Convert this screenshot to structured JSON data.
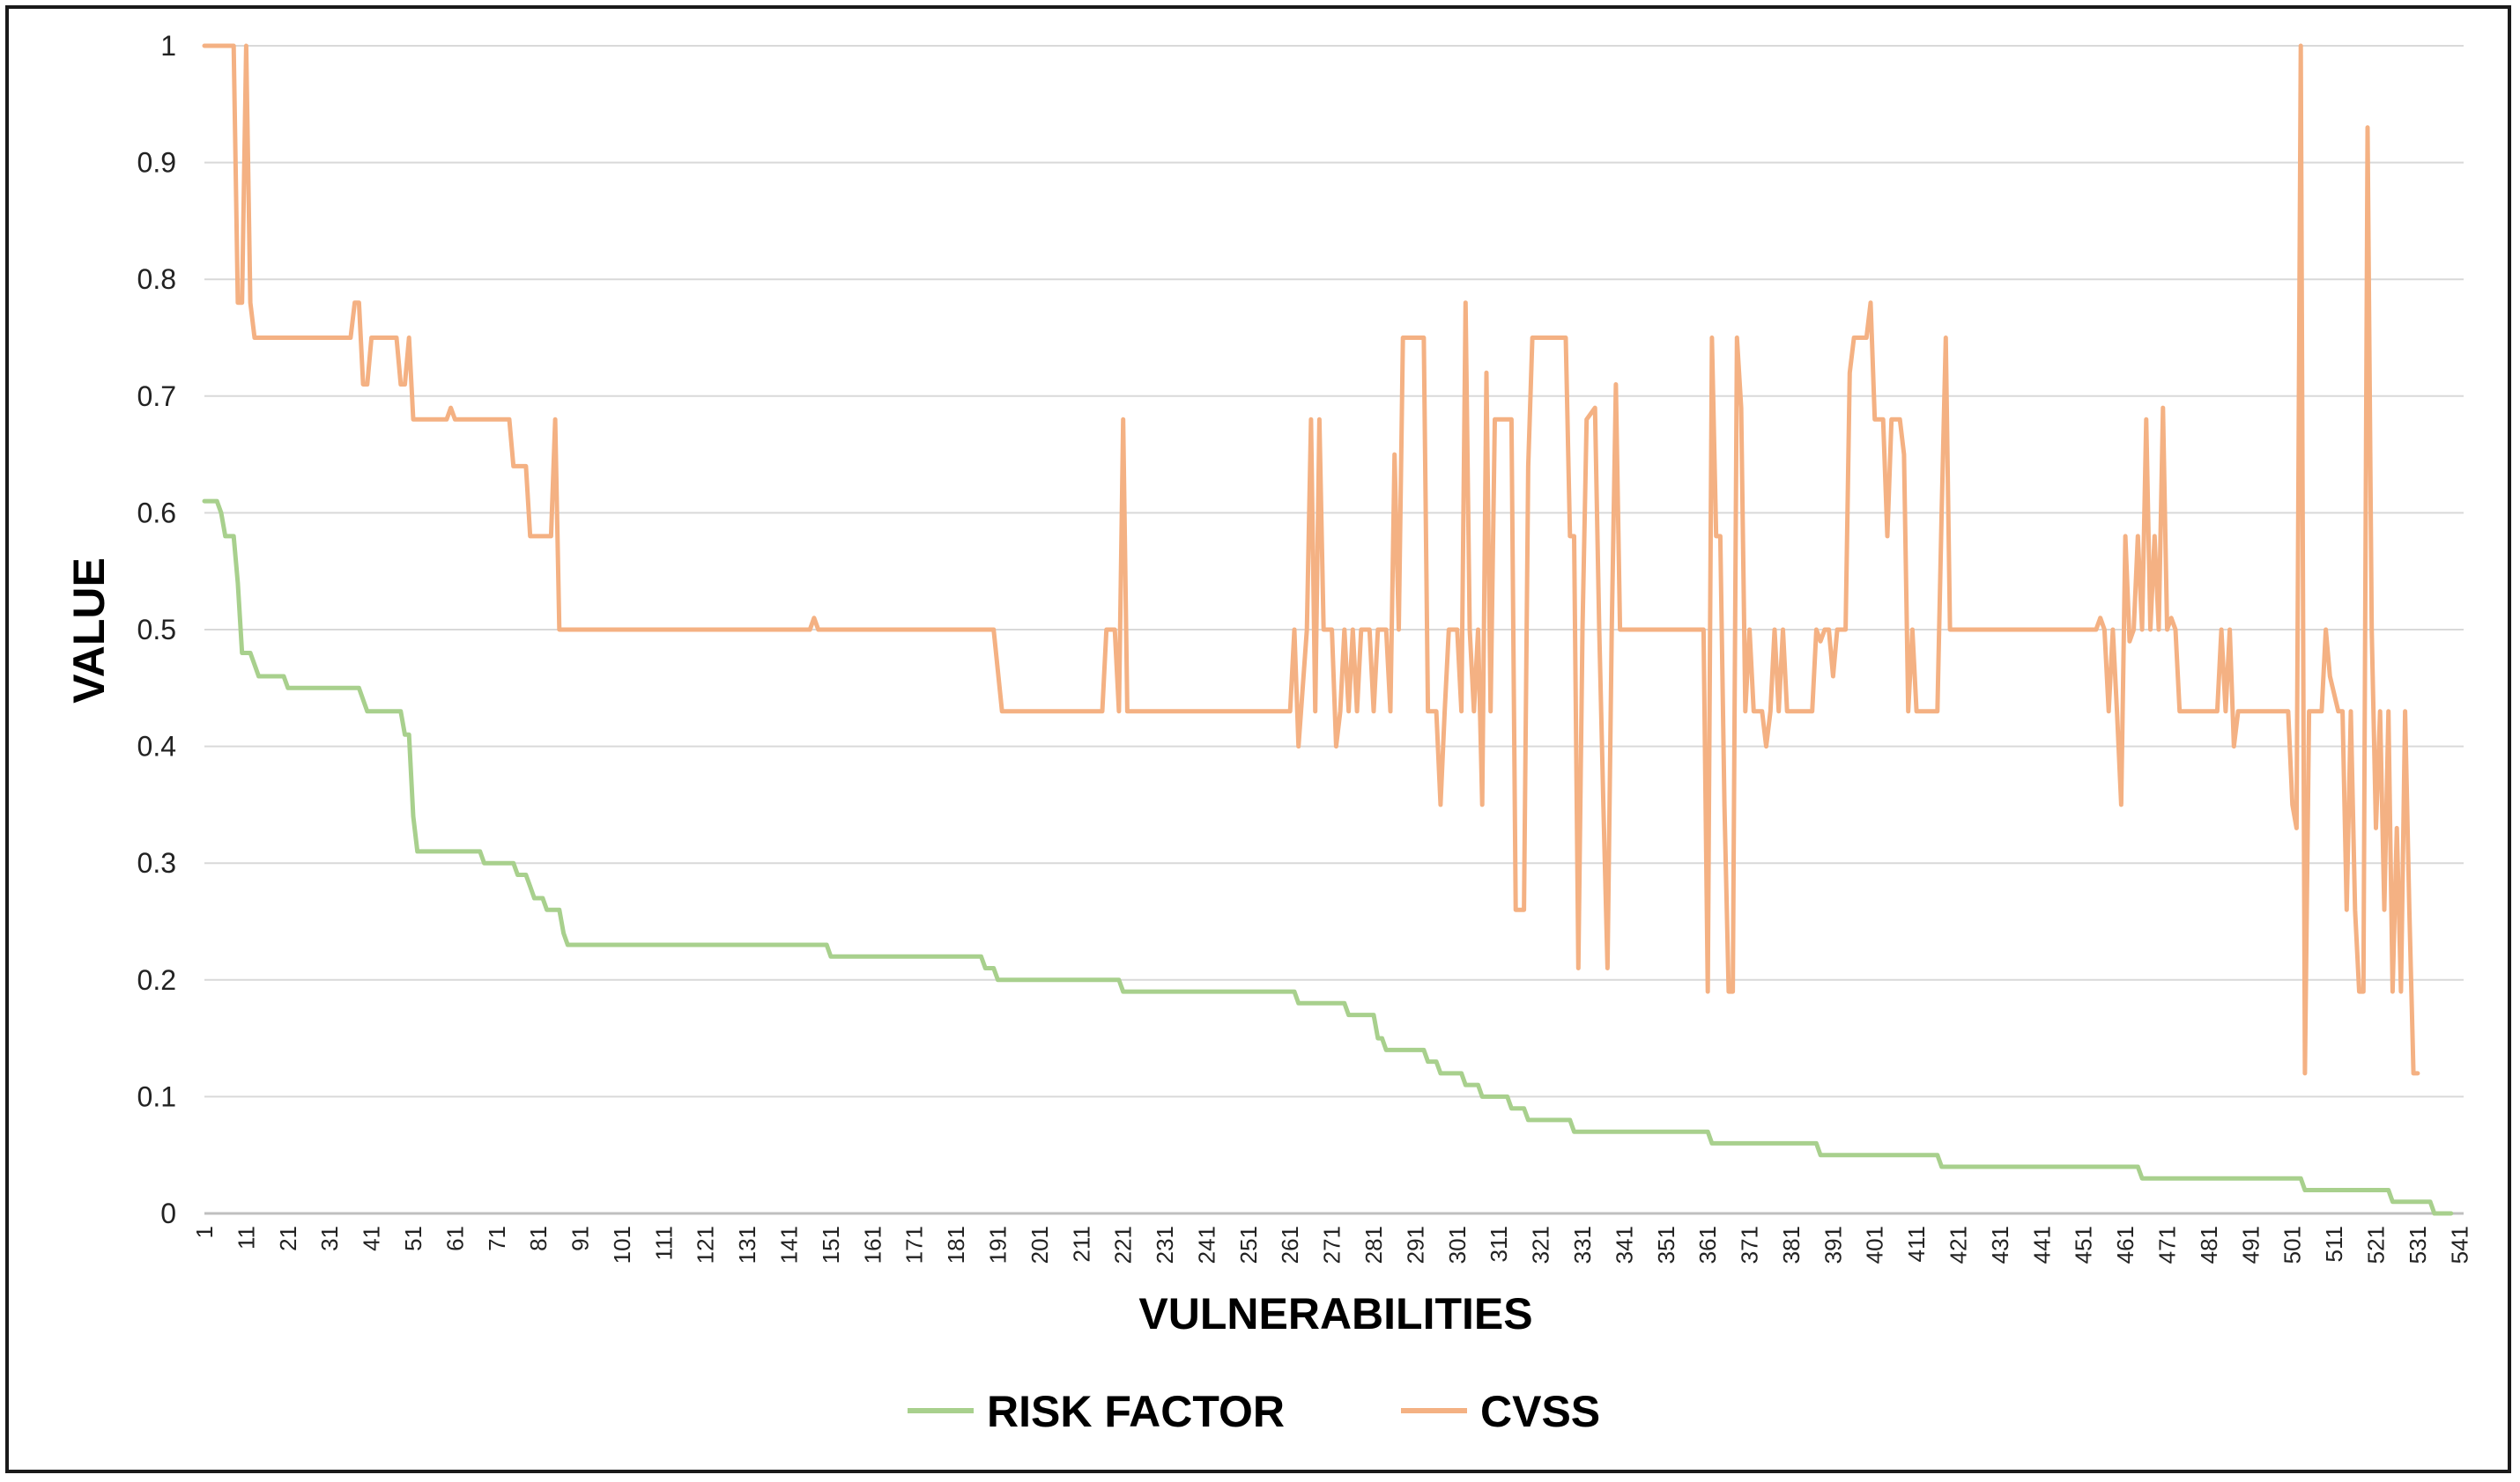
{
  "chart_data": {
    "type": "line",
    "title": "",
    "xlabel": "VULNERABILITIES",
    "ylabel": "VALUE",
    "xlim": [
      1,
      542
    ],
    "ylim": [
      0,
      1
    ],
    "y_ticks": [
      "0",
      "0.1",
      "0.2",
      "0.3",
      "0.4",
      "0.5",
      "0.6",
      "0.7",
      "0.8",
      "0.9",
      "1"
    ],
    "x_ticks": [
      "1",
      "11",
      "21",
      "31",
      "41",
      "51",
      "61",
      "71",
      "81",
      "91",
      "101",
      "111",
      "121",
      "131",
      "141",
      "151",
      "161",
      "171",
      "181",
      "191",
      "201",
      "211",
      "221",
      "231",
      "241",
      "251",
      "261",
      "271",
      "281",
      "291",
      "301",
      "311",
      "321",
      "331",
      "341",
      "351",
      "361",
      "371",
      "381",
      "391",
      "401",
      "411",
      "421",
      "431",
      "441",
      "451",
      "461",
      "471",
      "481",
      "491",
      "501",
      "511",
      "521",
      "531",
      "541"
    ],
    "grid": true,
    "legend_position": "bottom",
    "series": [
      {
        "name": "RISK FACTOR",
        "color": "#a8d08d",
        "points": [
          [
            1,
            0.61
          ],
          [
            4,
            0.61
          ],
          [
            5,
            0.6
          ],
          [
            6,
            0.58
          ],
          [
            8,
            0.58
          ],
          [
            9,
            0.54
          ],
          [
            10,
            0.48
          ],
          [
            12,
            0.48
          ],
          [
            13,
            0.47
          ],
          [
            14,
            0.46
          ],
          [
            20,
            0.46
          ],
          [
            21,
            0.45
          ],
          [
            38,
            0.45
          ],
          [
            40,
            0.43
          ],
          [
            48,
            0.43
          ],
          [
            49,
            0.41
          ],
          [
            50,
            0.41
          ],
          [
            51,
            0.34
          ],
          [
            52,
            0.31
          ],
          [
            67,
            0.31
          ],
          [
            68,
            0.3
          ],
          [
            75,
            0.3
          ],
          [
            76,
            0.29
          ],
          [
            78,
            0.29
          ],
          [
            79,
            0.28
          ],
          [
            80,
            0.27
          ],
          [
            82,
            0.27
          ],
          [
            83,
            0.26
          ],
          [
            86,
            0.26
          ],
          [
            87,
            0.24
          ],
          [
            88,
            0.23
          ],
          [
            150,
            0.23
          ],
          [
            151,
            0.22
          ],
          [
            187,
            0.22
          ],
          [
            188,
            0.21
          ],
          [
            190,
            0.21
          ],
          [
            191,
            0.2
          ],
          [
            220,
            0.2
          ],
          [
            221,
            0.19
          ],
          [
            262,
            0.19
          ],
          [
            263,
            0.18
          ],
          [
            274,
            0.18
          ],
          [
            275,
            0.17
          ],
          [
            281,
            0.17
          ],
          [
            282,
            0.15
          ],
          [
            283,
            0.15
          ],
          [
            284,
            0.14
          ],
          [
            293,
            0.14
          ],
          [
            294,
            0.13
          ],
          [
            296,
            0.13
          ],
          [
            297,
            0.12
          ],
          [
            302,
            0.12
          ],
          [
            303,
            0.11
          ],
          [
            306,
            0.11
          ],
          [
            307,
            0.1
          ],
          [
            313,
            0.1
          ],
          [
            314,
            0.09
          ],
          [
            317,
            0.09
          ],
          [
            318,
            0.08
          ],
          [
            328,
            0.08
          ],
          [
            329,
            0.07
          ],
          [
            361,
            0.07
          ],
          [
            362,
            0.06
          ],
          [
            387,
            0.06
          ],
          [
            388,
            0.05
          ],
          [
            416,
            0.05
          ],
          [
            417,
            0.04
          ],
          [
            464,
            0.04
          ],
          [
            465,
            0.03
          ],
          [
            503,
            0.03
          ],
          [
            504,
            0.02
          ],
          [
            524,
            0.02
          ],
          [
            525,
            0.01
          ],
          [
            534,
            0.01
          ],
          [
            535,
            0.0
          ],
          [
            539,
            0.0
          ]
        ]
      },
      {
        "name": "CVSS",
        "color": "#f4b183",
        "points": [
          [
            1,
            1.0
          ],
          [
            8,
            1.0
          ],
          [
            9,
            0.78
          ],
          [
            10,
            0.78
          ],
          [
            11,
            1.0
          ],
          [
            12,
            0.78
          ],
          [
            13,
            0.75
          ],
          [
            36,
            0.75
          ],
          [
            37,
            0.78
          ],
          [
            38,
            0.78
          ],
          [
            39,
            0.71
          ],
          [
            40,
            0.71
          ],
          [
            41,
            0.75
          ],
          [
            47,
            0.75
          ],
          [
            48,
            0.71
          ],
          [
            49,
            0.71
          ],
          [
            50,
            0.75
          ],
          [
            51,
            0.68
          ],
          [
            59,
            0.68
          ],
          [
            60,
            0.69
          ],
          [
            61,
            0.68
          ],
          [
            74,
            0.68
          ],
          [
            75,
            0.64
          ],
          [
            78,
            0.64
          ],
          [
            79,
            0.58
          ],
          [
            84,
            0.58
          ],
          [
            85,
            0.68
          ],
          [
            86,
            0.5
          ],
          [
            146,
            0.5
          ],
          [
            147,
            0.51
          ],
          [
            148,
            0.5
          ],
          [
            190,
            0.5
          ],
          [
            192,
            0.43
          ],
          [
            216,
            0.43
          ],
          [
            217,
            0.5
          ],
          [
            219,
            0.5
          ],
          [
            220,
            0.43
          ],
          [
            221,
            0.68
          ],
          [
            222,
            0.43
          ],
          [
            261,
            0.43
          ],
          [
            262,
            0.5
          ],
          [
            263,
            0.4
          ],
          [
            265,
            0.5
          ],
          [
            266,
            0.68
          ],
          [
            267,
            0.43
          ],
          [
            268,
            0.68
          ],
          [
            269,
            0.5
          ],
          [
            271,
            0.5
          ],
          [
            272,
            0.4
          ],
          [
            273,
            0.43
          ],
          [
            274,
            0.5
          ],
          [
            275,
            0.43
          ],
          [
            276,
            0.5
          ],
          [
            277,
            0.43
          ],
          [
            278,
            0.5
          ],
          [
            280,
            0.5
          ],
          [
            281,
            0.43
          ],
          [
            282,
            0.5
          ],
          [
            284,
            0.5
          ],
          [
            285,
            0.43
          ],
          [
            286,
            0.65
          ],
          [
            287,
            0.5
          ],
          [
            288,
            0.75
          ],
          [
            293,
            0.75
          ],
          [
            294,
            0.43
          ],
          [
            296,
            0.43
          ],
          [
            297,
            0.35
          ],
          [
            298,
            0.43
          ],
          [
            299,
            0.5
          ],
          [
            301,
            0.5
          ],
          [
            302,
            0.43
          ],
          [
            303,
            0.78
          ],
          [
            304,
            0.5
          ],
          [
            305,
            0.43
          ],
          [
            306,
            0.5
          ],
          [
            307,
            0.35
          ],
          [
            308,
            0.72
          ],
          [
            309,
            0.43
          ],
          [
            310,
            0.68
          ],
          [
            314,
            0.68
          ],
          [
            315,
            0.26
          ],
          [
            317,
            0.26
          ],
          [
            318,
            0.64
          ],
          [
            319,
            0.75
          ],
          [
            327,
            0.75
          ],
          [
            328,
            0.58
          ],
          [
            329,
            0.58
          ],
          [
            330,
            0.21
          ],
          [
            331,
            0.5
          ],
          [
            332,
            0.68
          ],
          [
            334,
            0.69
          ],
          [
            335,
            0.5
          ],
          [
            336,
            0.35
          ],
          [
            337,
            0.21
          ],
          [
            338,
            0.5
          ],
          [
            339,
            0.71
          ],
          [
            340,
            0.5
          ],
          [
            360,
            0.5
          ],
          [
            361,
            0.19
          ],
          [
            362,
            0.75
          ],
          [
            363,
            0.58
          ],
          [
            364,
            0.58
          ],
          [
            365,
            0.35
          ],
          [
            366,
            0.19
          ],
          [
            367,
            0.19
          ],
          [
            368,
            0.75
          ],
          [
            369,
            0.69
          ],
          [
            370,
            0.43
          ],
          [
            371,
            0.5
          ],
          [
            372,
            0.43
          ],
          [
            374,
            0.43
          ],
          [
            375,
            0.4
          ],
          [
            376,
            0.43
          ],
          [
            377,
            0.5
          ],
          [
            378,
            0.43
          ],
          [
            379,
            0.5
          ],
          [
            380,
            0.43
          ],
          [
            386,
            0.43
          ],
          [
            387,
            0.5
          ],
          [
            388,
            0.49
          ],
          [
            389,
            0.5
          ],
          [
            390,
            0.5
          ],
          [
            391,
            0.46
          ],
          [
            392,
            0.5
          ],
          [
            394,
            0.5
          ],
          [
            395,
            0.72
          ],
          [
            396,
            0.75
          ],
          [
            399,
            0.75
          ],
          [
            400,
            0.78
          ],
          [
            401,
            0.68
          ],
          [
            403,
            0.68
          ],
          [
            404,
            0.58
          ],
          [
            405,
            0.68
          ],
          [
            407,
            0.68
          ],
          [
            408,
            0.65
          ],
          [
            409,
            0.43
          ],
          [
            410,
            0.5
          ],
          [
            411,
            0.43
          ],
          [
            416,
            0.43
          ],
          [
            417,
            0.6
          ],
          [
            418,
            0.75
          ],
          [
            419,
            0.5
          ],
          [
            454,
            0.5
          ],
          [
            455,
            0.51
          ],
          [
            456,
            0.5
          ],
          [
            457,
            0.43
          ],
          [
            458,
            0.5
          ],
          [
            459,
            0.43
          ],
          [
            460,
            0.35
          ],
          [
            461,
            0.58
          ],
          [
            462,
            0.49
          ],
          [
            463,
            0.5
          ],
          [
            464,
            0.58
          ],
          [
            465,
            0.5
          ],
          [
            466,
            0.68
          ],
          [
            467,
            0.5
          ],
          [
            468,
            0.58
          ],
          [
            469,
            0.5
          ],
          [
            470,
            0.69
          ],
          [
            471,
            0.5
          ],
          [
            472,
            0.51
          ],
          [
            473,
            0.5
          ],
          [
            474,
            0.43
          ],
          [
            483,
            0.43
          ],
          [
            484,
            0.5
          ],
          [
            485,
            0.43
          ],
          [
            486,
            0.5
          ],
          [
            487,
            0.4
          ],
          [
            488,
            0.43
          ],
          [
            500,
            0.43
          ],
          [
            501,
            0.35
          ],
          [
            502,
            0.33
          ],
          [
            503,
            1.0
          ],
          [
            504,
            0.12
          ],
          [
            505,
            0.43
          ],
          [
            508,
            0.43
          ],
          [
            509,
            0.5
          ],
          [
            510,
            0.46
          ],
          [
            512,
            0.43
          ],
          [
            513,
            0.43
          ],
          [
            514,
            0.26
          ],
          [
            515,
            0.43
          ],
          [
            516,
            0.26
          ],
          [
            517,
            0.19
          ],
          [
            518,
            0.19
          ],
          [
            519,
            0.93
          ],
          [
            520,
            0.5
          ],
          [
            521,
            0.33
          ],
          [
            522,
            0.43
          ],
          [
            523,
            0.26
          ],
          [
            524,
            0.43
          ],
          [
            525,
            0.19
          ],
          [
            526,
            0.33
          ],
          [
            527,
            0.19
          ],
          [
            528,
            0.43
          ],
          [
            529,
            0.26
          ],
          [
            530,
            0.12
          ],
          [
            531,
            0.12
          ]
        ]
      }
    ]
  }
}
